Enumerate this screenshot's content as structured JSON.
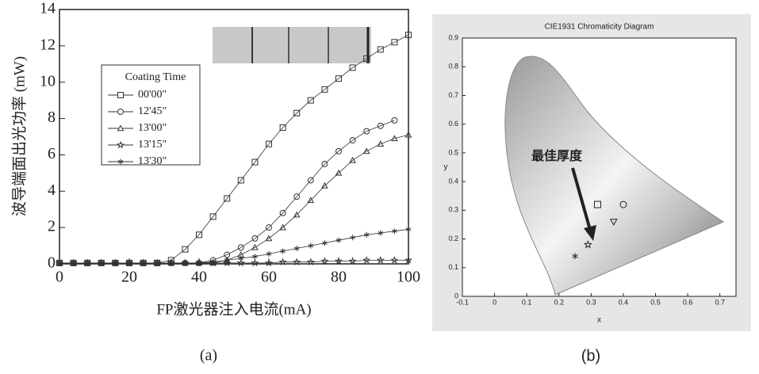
{
  "chart_data": [
    {
      "type": "line",
      "y_label": "波导端面出光功率 (mW)",
      "x_label": "FP激光器注入电流(mA)",
      "caption": "(a)",
      "legend_title": "Coating Time",
      "x": [
        0,
        4,
        8,
        12,
        16,
        20,
        24,
        28,
        32,
        36,
        40,
        44,
        48,
        52,
        56,
        60,
        64,
        68,
        72,
        76,
        80,
        84,
        88,
        92,
        96,
        100
      ],
      "xlim": [
        0,
        100
      ],
      "xticks": [
        0,
        20,
        40,
        60,
        80,
        100
      ],
      "ylim": [
        0,
        14
      ],
      "yticks": [
        0,
        2,
        4,
        6,
        8,
        10,
        12,
        14
      ],
      "series": [
        {
          "name": "00'00\"",
          "marker": "square",
          "color": "#333333",
          "values": [
            0.05,
            0.05,
            0.05,
            0.05,
            0.05,
            0.05,
            0.05,
            0.05,
            0.2,
            0.8,
            1.6,
            2.6,
            3.6,
            4.6,
            5.6,
            6.6,
            7.5,
            8.3,
            9.0,
            9.6,
            10.2,
            10.8,
            11.3,
            11.8,
            12.2,
            12.6
          ]
        },
        {
          "name": "12'45\"",
          "marker": "circle",
          "color": "#333333",
          "values": [
            0.05,
            0.05,
            0.05,
            0.05,
            0.05,
            0.05,
            0.05,
            0.05,
            0.05,
            0.05,
            0.05,
            0.2,
            0.5,
            0.9,
            1.4,
            2.0,
            2.8,
            3.7,
            4.6,
            5.5,
            6.2,
            6.8,
            7.3,
            7.6,
            7.9,
            null
          ]
        },
        {
          "name": "13'00\"",
          "marker": "triangle",
          "color": "#333333",
          "values": [
            0.05,
            0.05,
            0.05,
            0.05,
            0.05,
            0.05,
            0.05,
            0.05,
            0.05,
            0.05,
            0.05,
            0.05,
            0.2,
            0.5,
            0.9,
            1.4,
            2.0,
            2.7,
            3.5,
            4.3,
            5.0,
            5.7,
            6.2,
            6.6,
            6.9,
            7.1
          ]
        },
        {
          "name": "13'15\"",
          "marker": "star",
          "color": "#333333",
          "values": [
            0.05,
            0.05,
            0.05,
            0.05,
            0.05,
            0.05,
            0.05,
            0.05,
            0.05,
            0.05,
            0.05,
            0.05,
            0.05,
            0.05,
            0.05,
            0.05,
            0.1,
            0.1,
            0.1,
            0.15,
            0.15,
            0.15,
            0.2,
            0.2,
            0.2,
            0.2
          ]
        },
        {
          "name": "13'30\"",
          "marker": "asterisk",
          "color": "#333333",
          "values": [
            0.05,
            0.05,
            0.05,
            0.05,
            0.05,
            0.05,
            0.05,
            0.05,
            0.05,
            0.05,
            0.05,
            0.1,
            0.2,
            0.3,
            0.4,
            0.55,
            0.7,
            0.85,
            1.0,
            1.15,
            1.3,
            1.45,
            1.6,
            1.7,
            1.8,
            1.9
          ]
        }
      ]
    },
    {
      "type": "scatter",
      "title": "CIE1931 Chromaticity Diagram",
      "x_label": "x",
      "y_label": "y",
      "caption": "(b)",
      "annotation": "最佳厚度",
      "xlim": [
        -0.1,
        0.75
      ],
      "xticks": [
        -0.1,
        0,
        0.1,
        0.2,
        0.3,
        0.4,
        0.5,
        0.6,
        0.7
      ],
      "ylim": [
        0,
        0.9
      ],
      "yticks": [
        0,
        0.1,
        0.2,
        0.3,
        0.4,
        0.5,
        0.6,
        0.7,
        0.8,
        0.9
      ],
      "points": [
        {
          "x": 0.32,
          "y": 0.32,
          "marker": "square"
        },
        {
          "x": 0.4,
          "y": 0.32,
          "marker": "circle"
        },
        {
          "x": 0.37,
          "y": 0.26,
          "marker": "triangle-down"
        },
        {
          "x": 0.29,
          "y": 0.18,
          "marker": "star"
        },
        {
          "x": 0.25,
          "y": 0.14,
          "marker": "asterisk"
        }
      ]
    }
  ]
}
